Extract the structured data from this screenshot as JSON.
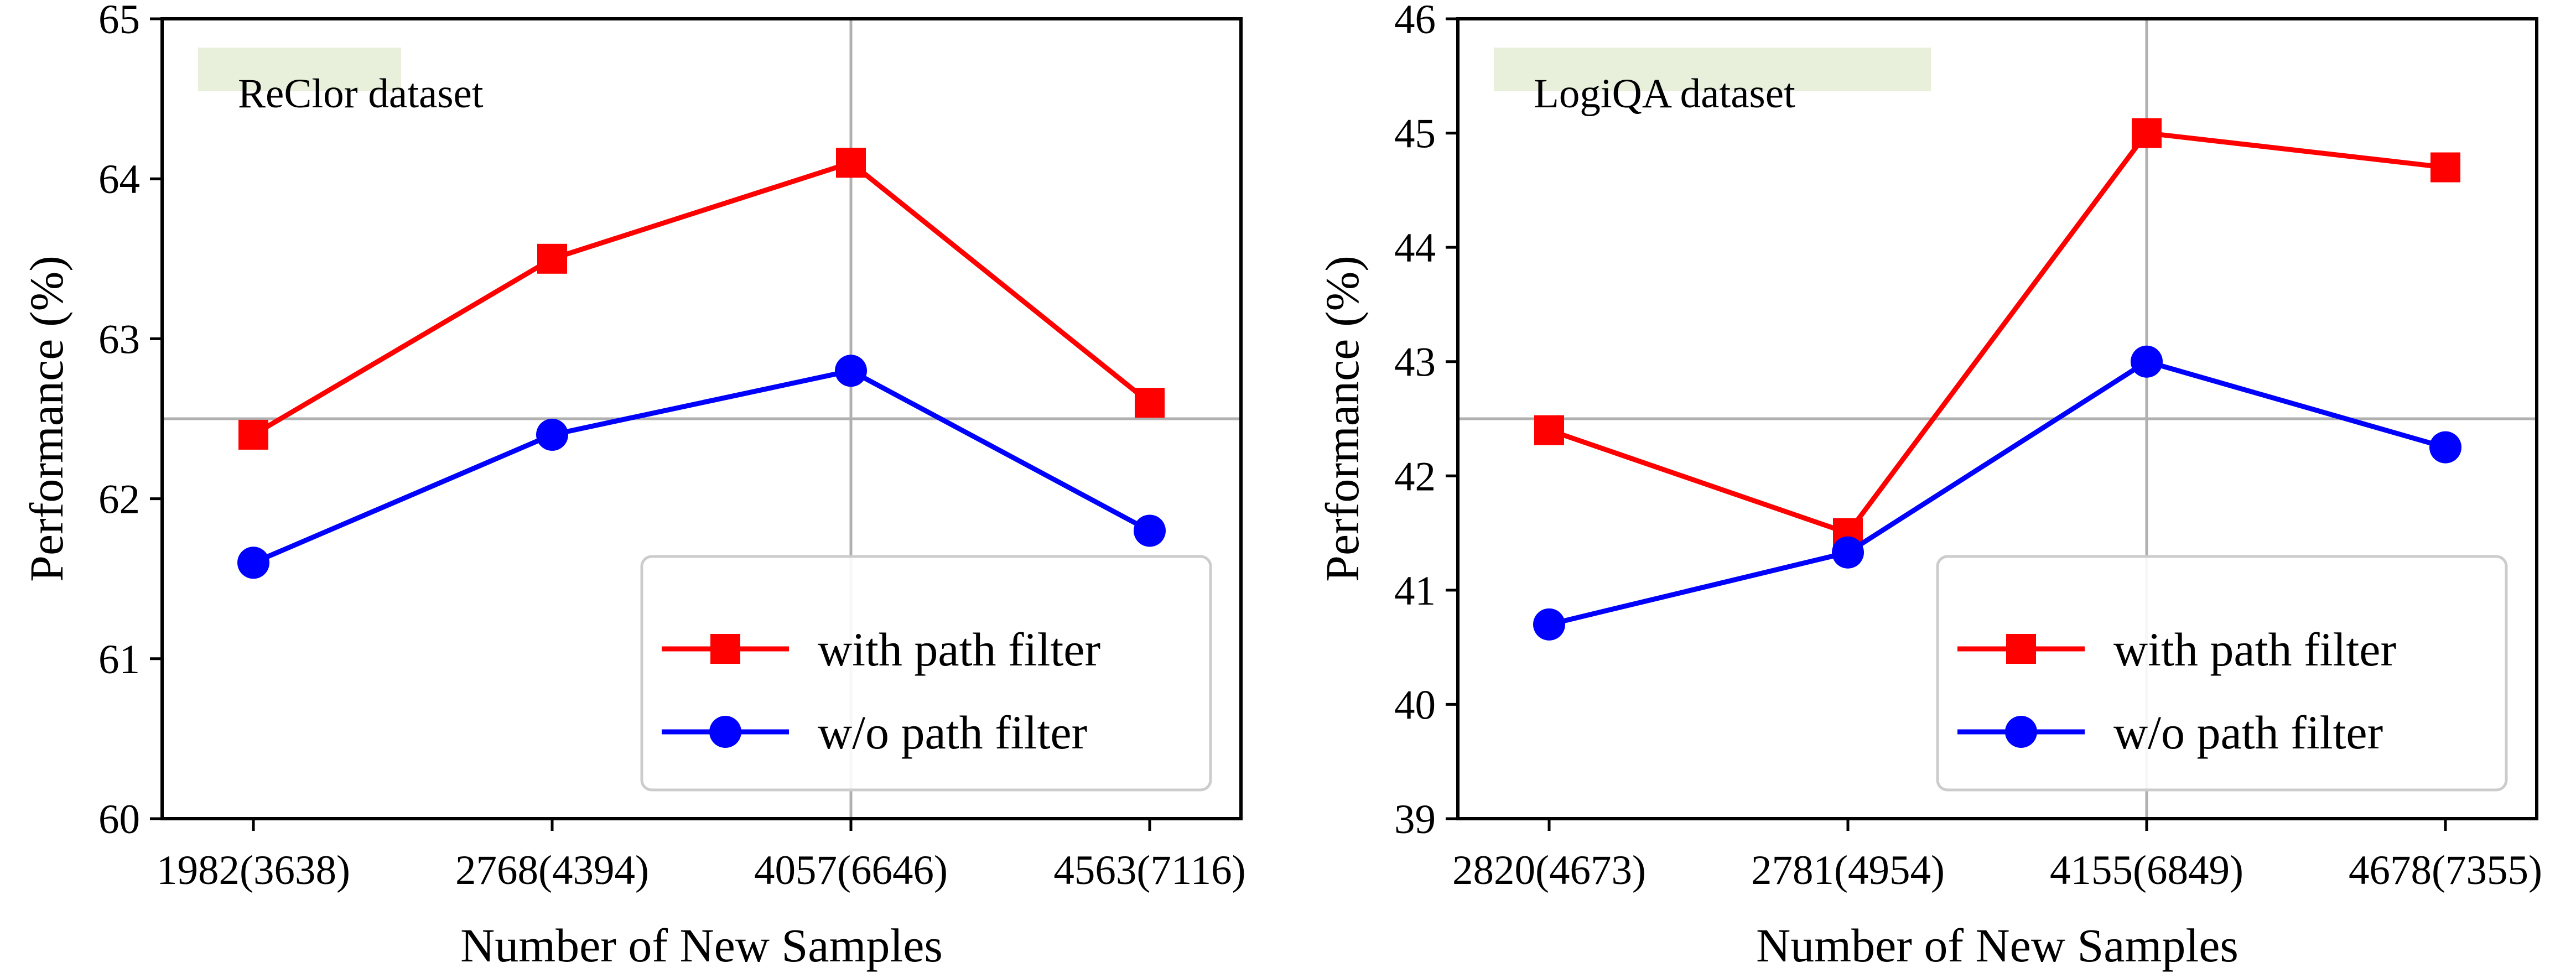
{
  "chart_data": [
    {
      "type": "line",
      "dataset_label": "ReClor dataset",
      "categories": [
        "1982(3638)",
        "2768(4394)",
        "4057(6646)",
        "4563(7116)"
      ],
      "xlabel": "Number of New Samples",
      "ylabel": "Performance (%)",
      "ylim": [
        60,
        65
      ],
      "yticks": [
        60,
        61,
        62,
        63,
        64,
        65
      ],
      "series": [
        {
          "name": "with path filter",
          "color": "#ff0000",
          "marker": "square",
          "values": [
            62.4,
            63.5,
            64.1,
            62.6
          ]
        },
        {
          "name": "w/o path filter",
          "color": "#0000ff",
          "marker": "circle",
          "values": [
            61.6,
            62.4,
            62.8,
            61.8
          ]
        }
      ],
      "reference_lines": {
        "x_between_categories": 2.5,
        "y": 62.5,
        "color": "#b0b0b0"
      },
      "legend_position": "lower-right",
      "label_box_color": "#e8f0dc"
    },
    {
      "type": "line",
      "dataset_label": "LogiQA dataset",
      "categories": [
        "2820(4673)",
        "2781(4954)",
        "4155(6849)",
        "4678(7355)"
      ],
      "xlabel": "Number of New Samples",
      "ylabel": "Performance (%)",
      "ylim": [
        39,
        46
      ],
      "yticks": [
        39,
        40,
        41,
        42,
        43,
        44,
        45,
        46
      ],
      "series": [
        {
          "name": "with path filter",
          "color": "#ff0000",
          "marker": "square",
          "values": [
            42.4,
            41.5,
            45.0,
            44.7
          ]
        },
        {
          "name": "w/o path filter",
          "color": "#0000ff",
          "marker": "circle",
          "values": [
            40.7,
            41.33,
            43.0,
            42.25
          ]
        }
      ],
      "reference_lines": {
        "x_between_categories": 2.5,
        "y": 42.5,
        "color": "#b0b0b0"
      },
      "legend_position": "lower-right",
      "label_box_color": "#e8f0dc"
    }
  ]
}
